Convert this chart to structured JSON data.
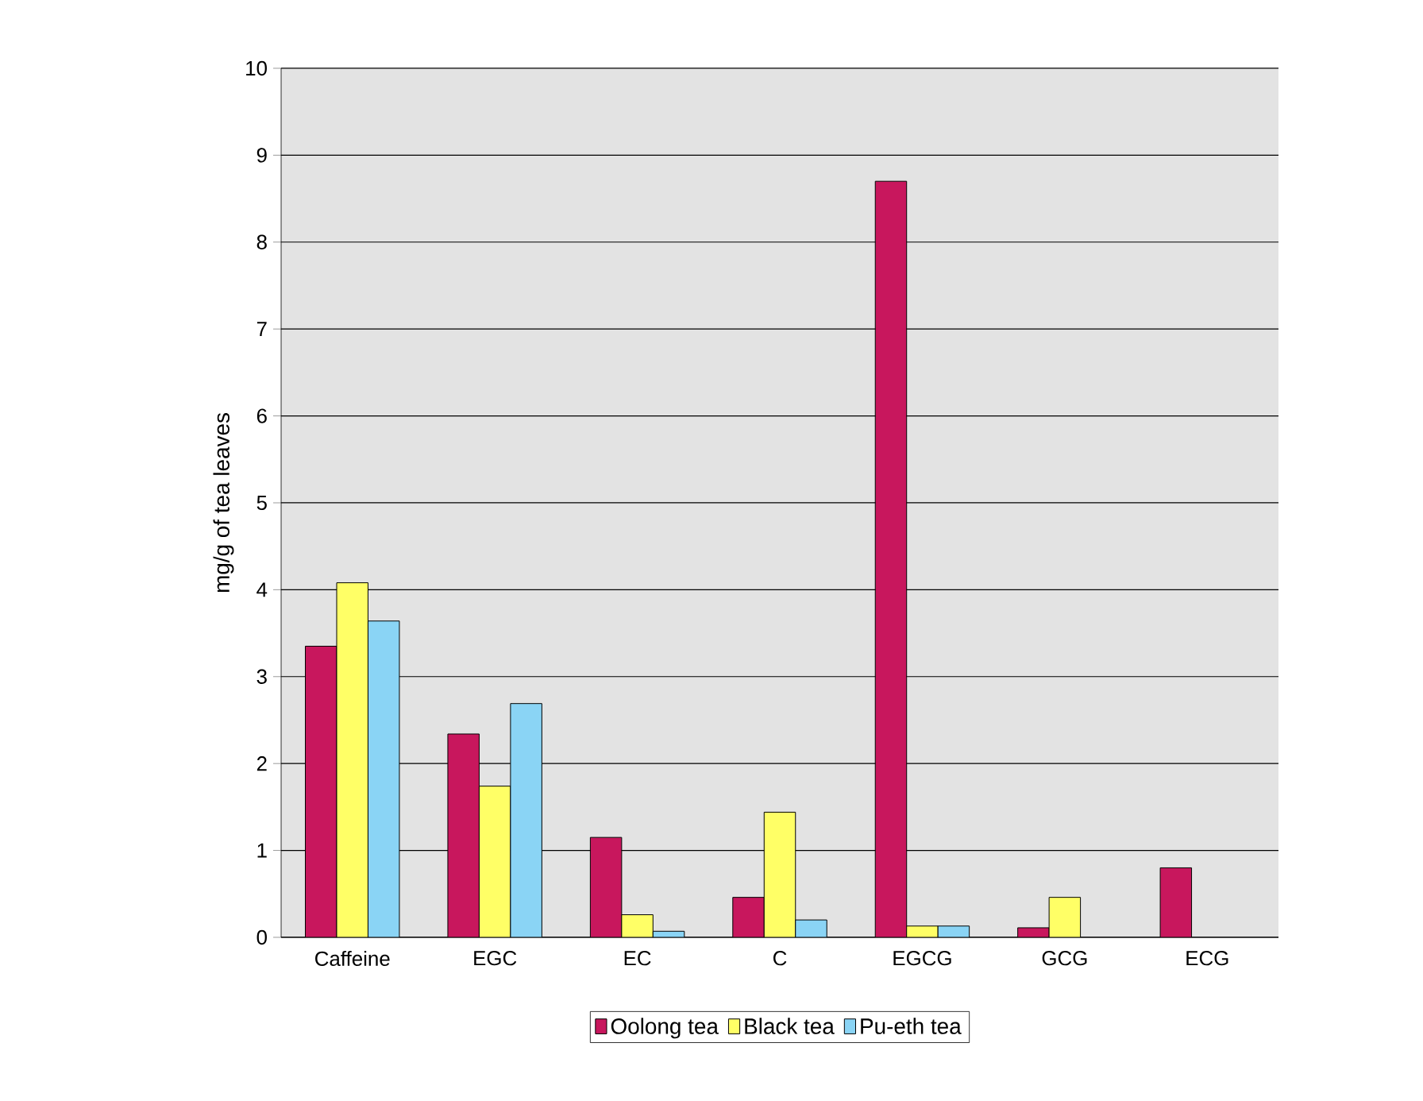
{
  "chart_data": {
    "type": "bar",
    "ylabel": "mg/g of tea leaves",
    "categories": [
      "Caffeine",
      "EGC",
      "EC",
      "C",
      "EGCG",
      "GCG",
      "ECG"
    ],
    "series": [
      {
        "name": "Oolong tea",
        "color": "#c8175d",
        "values": [
          3.35,
          2.34,
          1.15,
          0.46,
          8.7,
          0.11,
          0.8
        ]
      },
      {
        "name": "Black tea",
        "color": "#ffff66",
        "values": [
          4.08,
          1.74,
          0.26,
          1.44,
          0.13,
          0.46,
          null
        ]
      },
      {
        "name": "Pu-eth tea",
        "color": "#8ad4f5",
        "values": [
          3.64,
          2.69,
          0.07,
          0.2,
          0.13,
          null,
          null
        ]
      }
    ],
    "ylim": [
      0,
      10
    ],
    "yticks": [
      0,
      1,
      2,
      3,
      4,
      5,
      6,
      7,
      8,
      9,
      10
    ],
    "grid": "y",
    "legend": "bottom"
  }
}
